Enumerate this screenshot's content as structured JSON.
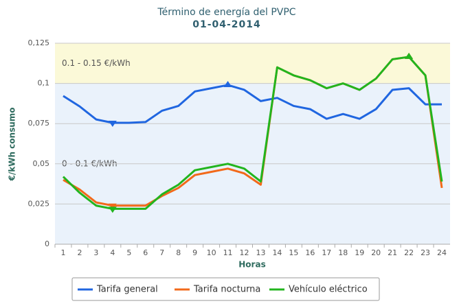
{
  "chart_data": {
    "type": "line",
    "title": "Término de energía del PVPC",
    "subtitle": "01-04-2014",
    "y_label": "€/kWh consumo",
    "x_label": "Horas",
    "categories": [
      1,
      2,
      3,
      4,
      5,
      6,
      7,
      8,
      9,
      10,
      11,
      12,
      13,
      14,
      15,
      16,
      17,
      18,
      19,
      20,
      21,
      22,
      23,
      24
    ],
    "series": [
      {
        "name": "Tarifa general",
        "color": "#2066e0",
        "values": [
          0.0922,
          0.0857,
          0.0776,
          0.0755,
          0.0755,
          0.076,
          0.083,
          0.086,
          0.095,
          0.097,
          0.099,
          0.096,
          0.089,
          0.091,
          0.086,
          0.084,
          0.078,
          0.081,
          0.078,
          0.084,
          0.096,
          0.097,
          0.087,
          0.087
        ]
      },
      {
        "name": "Tarifa nocturna",
        "color": "#f2691a",
        "values": [
          0.04,
          0.034,
          0.026,
          0.024,
          0.024,
          0.024,
          0.03,
          0.035,
          0.043,
          0.045,
          0.047,
          0.044,
          0.037,
          0.11,
          0.105,
          0.102,
          0.097,
          0.1,
          0.096,
          0.103,
          0.115,
          0.1165,
          0.105,
          0.035
        ]
      },
      {
        "name": "Vehículo eléctrico",
        "color": "#22b51e",
        "values": [
          0.042,
          0.032,
          0.024,
          0.022,
          0.022,
          0.022,
          0.031,
          0.037,
          0.046,
          0.048,
          0.05,
          0.047,
          0.039,
          0.11,
          0.105,
          0.102,
          0.097,
          0.1,
          0.096,
          0.103,
          0.115,
          0.1165,
          0.105,
          0.039
        ]
      }
    ],
    "bands": [
      {
        "label": "0.1 - 0.15 €/kWh",
        "from": 0.1,
        "to": 0.15,
        "color": "#fbf9d8"
      },
      {
        "label": "0 - 0.1 €/kWh",
        "from": 0,
        "to": 0.1,
        "color": "#eaf2fb"
      }
    ],
    "ylim": [
      0,
      0.125
    ],
    "yticks": [
      0,
      {
        "value": 0.025,
        "label": "0,025"
      },
      {
        "value": 0.05,
        "label": "0,05"
      },
      {
        "value": 0.075,
        "label": "0,075"
      },
      {
        "value": 0.1,
        "label": "0,1"
      },
      {
        "value": 0.125,
        "label": "0,125"
      }
    ],
    "grid": true,
    "legend": "bottom"
  }
}
